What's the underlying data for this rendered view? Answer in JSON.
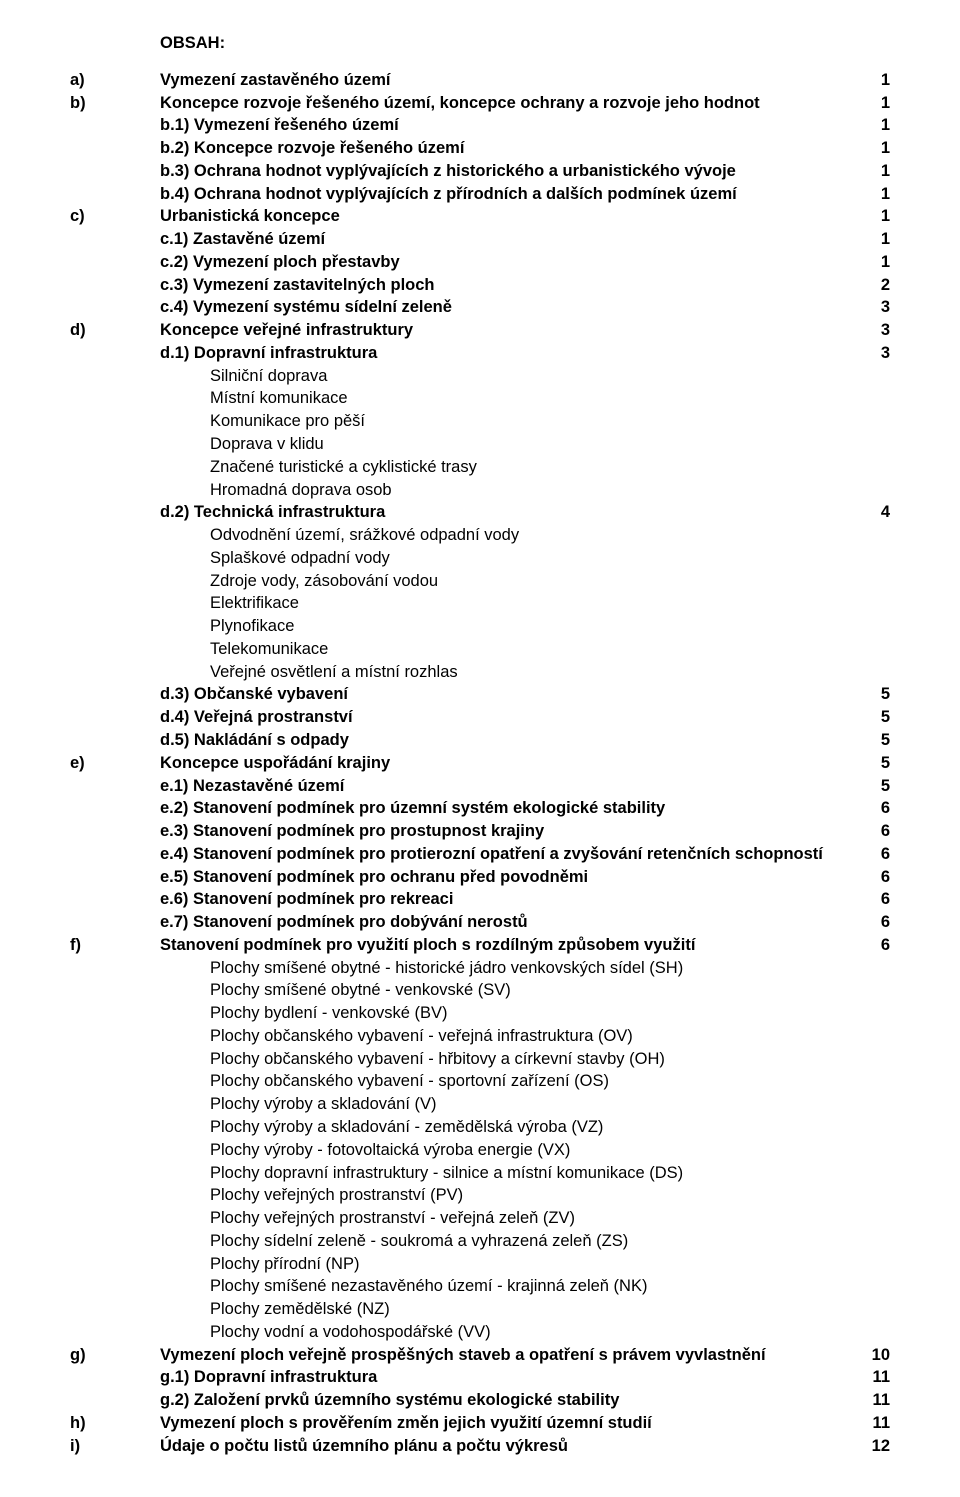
{
  "title": "OBSAH:",
  "rows": [
    {
      "letter": "a)",
      "bold": true,
      "text": "Vymezení zastavěného území",
      "page": "1"
    },
    {
      "letter": "b)",
      "bold": true,
      "text": "Koncepce rozvoje řešeného území, koncepce ochrany a rozvoje jeho hodnot",
      "page": "1"
    },
    {
      "letter": "",
      "bold": true,
      "text": "b.1) Vymezení řešeného území",
      "page": "1"
    },
    {
      "letter": "",
      "bold": true,
      "text": "b.2) Koncepce rozvoje řešeného území",
      "page": "1"
    },
    {
      "letter": "",
      "bold": true,
      "text": "b.3) Ochrana hodnot vyplývajících z historického a urbanistického vývoje",
      "page": "1"
    },
    {
      "letter": "",
      "bold": true,
      "text": "b.4) Ochrana hodnot vyplývajících z přírodních a dalších podmínek území",
      "page": "1"
    },
    {
      "letter": "c)",
      "bold": true,
      "text": "Urbanistická koncepce",
      "page": "1"
    },
    {
      "letter": "",
      "bold": true,
      "text": "c.1) Zastavěné území",
      "page": "1"
    },
    {
      "letter": "",
      "bold": true,
      "text": "c.2) Vymezení ploch přestavby",
      "page": "1"
    },
    {
      "letter": "",
      "bold": true,
      "text": "c.3) Vymezení zastavitelných ploch",
      "page": "2"
    },
    {
      "letter": "",
      "bold": true,
      "text": "c.4) Vymezení systému sídelní zeleně",
      "page": "3"
    },
    {
      "letter": "d)",
      "bold": true,
      "text": "Koncepce veřejné infrastruktury",
      "page": "3"
    },
    {
      "letter": "",
      "bold": true,
      "text": "d.1) Dopravní infrastruktura",
      "page": "3"
    },
    {
      "letter": "",
      "bold": false,
      "indent": true,
      "text": "Silniční doprava",
      "page": ""
    },
    {
      "letter": "",
      "bold": false,
      "indent": true,
      "text": "Místní komunikace",
      "page": ""
    },
    {
      "letter": "",
      "bold": false,
      "indent": true,
      "text": "Komunikace pro pěší",
      "page": ""
    },
    {
      "letter": "",
      "bold": false,
      "indent": true,
      "text": "Doprava v klidu",
      "page": ""
    },
    {
      "letter": "",
      "bold": false,
      "indent": true,
      "text": "Značené turistické a cyklistické trasy",
      "page": ""
    },
    {
      "letter": "",
      "bold": false,
      "indent": true,
      "text": "Hromadná doprava osob",
      "page": ""
    },
    {
      "letter": "",
      "bold": true,
      "text": "d.2) Technická infrastruktura",
      "page": "4"
    },
    {
      "letter": "",
      "bold": false,
      "indent": true,
      "text": "Odvodnění území, srážkové odpadní vody",
      "page": ""
    },
    {
      "letter": "",
      "bold": false,
      "indent": true,
      "text": "Splaškové odpadní vody",
      "page": ""
    },
    {
      "letter": "",
      "bold": false,
      "indent": true,
      "text": "Zdroje vody, zásobování vodou",
      "page": ""
    },
    {
      "letter": "",
      "bold": false,
      "indent": true,
      "text": "Elektrifikace",
      "page": ""
    },
    {
      "letter": "",
      "bold": false,
      "indent": true,
      "text": "Plynofikace",
      "page": ""
    },
    {
      "letter": "",
      "bold": false,
      "indent": true,
      "text": "Telekomunikace",
      "page": ""
    },
    {
      "letter": "",
      "bold": false,
      "indent": true,
      "text": "Veřejné osvětlení a místní rozhlas",
      "page": ""
    },
    {
      "letter": "",
      "bold": true,
      "text": "d.3) Občanské vybavení",
      "page": "5"
    },
    {
      "letter": "",
      "bold": true,
      "text": "d.4) Veřejná prostranství",
      "page": "5"
    },
    {
      "letter": "",
      "bold": true,
      "text": "d.5) Nakládání s odpady",
      "page": "5"
    },
    {
      "letter": "e)",
      "bold": true,
      "text": "Koncepce uspořádání krajiny",
      "page": "5"
    },
    {
      "letter": "",
      "bold": true,
      "text": "e.1) Nezastavěné území",
      "page": "5"
    },
    {
      "letter": "",
      "bold": true,
      "text": "e.2) Stanovení podmínek pro územní systém ekologické stability",
      "page": "6"
    },
    {
      "letter": "",
      "bold": true,
      "text": "e.3) Stanovení podmínek pro prostupnost krajiny",
      "page": "6"
    },
    {
      "letter": "",
      "bold": true,
      "text": "e.4) Stanovení podmínek pro protierozní opatření a zvyšování retenčních schopností",
      "page": "6"
    },
    {
      "letter": "",
      "bold": true,
      "text": "e.5) Stanovení podmínek pro ochranu před povodněmi",
      "page": "6"
    },
    {
      "letter": "",
      "bold": true,
      "text": "e.6) Stanovení podmínek pro rekreaci",
      "page": "6"
    },
    {
      "letter": "",
      "bold": true,
      "text": "e.7) Stanovení podmínek pro dobývání nerostů",
      "page": "6"
    },
    {
      "letter": "f)",
      "bold": true,
      "text": "Stanovení podmínek pro využití ploch s rozdílným způsobem využití",
      "page": "6"
    },
    {
      "letter": "",
      "bold": false,
      "indent": true,
      "text": "Plochy smíšené obytné - historické jádro venkovských sídel (SH)",
      "page": ""
    },
    {
      "letter": "",
      "bold": false,
      "indent": true,
      "text": "Plochy smíšené obytné - venkovské (SV)",
      "page": ""
    },
    {
      "letter": "",
      "bold": false,
      "indent": true,
      "text": "Plochy bydlení - venkovské (BV)",
      "page": ""
    },
    {
      "letter": "",
      "bold": false,
      "indent": true,
      "text": "Plochy občanského vybavení - veřejná infrastruktura (OV)",
      "page": ""
    },
    {
      "letter": "",
      "bold": false,
      "indent": true,
      "text": "Plochy občanského vybavení - hřbitovy a církevní stavby (OH)",
      "page": ""
    },
    {
      "letter": "",
      "bold": false,
      "indent": true,
      "text": "Plochy občanského vybavení - sportovní zařízení (OS)",
      "page": ""
    },
    {
      "letter": "",
      "bold": false,
      "indent": true,
      "text": "Plochy výroby a skladování (V)",
      "page": ""
    },
    {
      "letter": "",
      "bold": false,
      "indent": true,
      "text": "Plochy výroby a skladování - zemědělská výroba (VZ)",
      "page": ""
    },
    {
      "letter": "",
      "bold": false,
      "indent": true,
      "text": "Plochy výroby - fotovoltaická výroba energie (VX)",
      "page": ""
    },
    {
      "letter": "",
      "bold": false,
      "indent": true,
      "text": "Plochy dopravní infrastruktury - silnice a místní komunikace (DS)",
      "page": ""
    },
    {
      "letter": "",
      "bold": false,
      "indent": true,
      "text": "Plochy veřejných prostranství (PV)",
      "page": ""
    },
    {
      "letter": "",
      "bold": false,
      "indent": true,
      "text": "Plochy veřejných prostranství - veřejná zeleň (ZV)",
      "page": ""
    },
    {
      "letter": "",
      "bold": false,
      "indent": true,
      "text": "Plochy sídelní zeleně - soukromá a vyhrazená zeleň (ZS)",
      "page": ""
    },
    {
      "letter": "",
      "bold": false,
      "indent": true,
      "text": "Plochy přírodní (NP)",
      "page": ""
    },
    {
      "letter": "",
      "bold": false,
      "indent": true,
      "text": "Plochy smíšené nezastavěného území - krajinná zeleň (NK)",
      "page": ""
    },
    {
      "letter": "",
      "bold": false,
      "indent": true,
      "text": "Plochy zemědělské (NZ)",
      "page": ""
    },
    {
      "letter": "",
      "bold": false,
      "indent": true,
      "text": "Plochy vodní a vodohospodářské (VV)",
      "page": ""
    },
    {
      "letter": "g)",
      "bold": true,
      "text": "Vymezení ploch veřejně prospěšných staveb a opatření s právem vyvlastnění",
      "page": "10"
    },
    {
      "letter": "",
      "bold": true,
      "text": "g.1) Dopravní infrastruktura",
      "page": "11"
    },
    {
      "letter": "",
      "bold": true,
      "text": "g.2) Založení prvků územního systému ekologické stability",
      "page": "11"
    },
    {
      "letter": "h)",
      "bold": true,
      "text": "Vymezení ploch s prověřením změn jejich využití územní studií",
      "page": "11"
    },
    {
      "letter": "i)",
      "bold": true,
      "text": "Údaje o počtu listů územního plánu a počtu výkresů",
      "page": "12"
    }
  ]
}
